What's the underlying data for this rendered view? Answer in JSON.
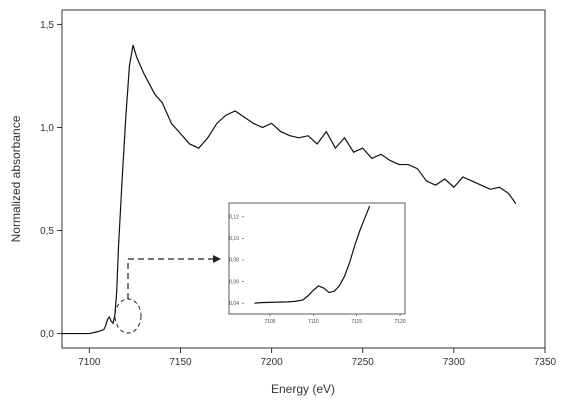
{
  "chart_data": [
    {
      "type": "line",
      "title": "",
      "xlabel": "Energy (eV)",
      "ylabel": "Normalized absorbance",
      "xlim": [
        7085,
        7350
      ],
      "ylim": [
        -0.07,
        1.57
      ],
      "x_ticks": [
        7100,
        7150,
        7200,
        7250,
        7300,
        7350
      ],
      "x_tick_labels": [
        "7100",
        "7150",
        "7200",
        "7250",
        "7300",
        "7350"
      ],
      "y_ticks": [
        0.0,
        0.5,
        1.0,
        1.5
      ],
      "y_tick_labels": [
        "0,0",
        "0,5",
        "1,0",
        "1,5"
      ],
      "grid": false,
      "legend": "none",
      "color": "#111111",
      "series": [
        {
          "x": [
            7085,
            7100,
            7105,
            7108,
            7109,
            7110,
            7111,
            7112,
            7113,
            7114,
            7115,
            7116,
            7118,
            7120,
            7122,
            7124,
            7126,
            7128,
            7130,
            7133,
            7136,
            7140,
            7145,
            7150,
            7155,
            7160,
            7165,
            7170,
            7175,
            7180,
            7185,
            7190,
            7195,
            7200,
            7205,
            7210,
            7215,
            7220,
            7225,
            7230,
            7235,
            7240,
            7245,
            7250,
            7255,
            7260,
            7265,
            7270,
            7275,
            7280,
            7285,
            7290,
            7295,
            7300,
            7305,
            7310,
            7315,
            7320,
            7325,
            7330,
            7334
          ],
          "y": [
            0.0,
            0.0,
            0.01,
            0.02,
            0.04,
            0.07,
            0.08,
            0.06,
            0.05,
            0.09,
            0.2,
            0.42,
            0.75,
            1.05,
            1.3,
            1.4,
            1.34,
            1.3,
            1.26,
            1.21,
            1.16,
            1.12,
            1.02,
            0.97,
            0.92,
            0.9,
            0.95,
            1.02,
            1.06,
            1.08,
            1.05,
            1.02,
            1.0,
            1.02,
            0.98,
            0.96,
            0.95,
            0.96,
            0.92,
            0.98,
            0.9,
            0.95,
            0.88,
            0.9,
            0.85,
            0.87,
            0.84,
            0.82,
            0.82,
            0.8,
            0.74,
            0.72,
            0.75,
            0.71,
            0.76,
            0.74,
            0.72,
            0.7,
            0.71,
            0.68,
            0.63
          ]
        }
      ]
    },
    {
      "type": "line",
      "title": "",
      "xlabel": "",
      "ylabel": "",
      "xlim": [
        7102,
        7120
      ],
      "ylim": [
        0.03,
        0.13
      ],
      "x_ticks": [
        7105,
        7110,
        7115,
        7120
      ],
      "x_tick_labels": [
        "7105",
        "7110",
        "7115",
        "7120"
      ],
      "y_ticks": [
        0.04,
        0.06,
        0.08,
        0.1,
        0.12
      ],
      "y_tick_labels": [
        "0,04",
        "0,06",
        "0,08",
        "0,10",
        "0,12"
      ],
      "grid": false,
      "legend": "none",
      "color": "#111111",
      "series": [
        {
          "x": [
            7103.2,
            7104,
            7105,
            7106,
            7107,
            7108,
            7108.8,
            7109.4,
            7110,
            7110.6,
            7111.2,
            7111.8,
            7112.4,
            7113,
            7113.6,
            7114.2,
            7114.8,
            7115.4,
            7116,
            7116.5
          ],
          "y": [
            0.04,
            0.0405,
            0.0408,
            0.041,
            0.0412,
            0.0418,
            0.043,
            0.047,
            0.052,
            0.056,
            0.054,
            0.05,
            0.051,
            0.056,
            0.065,
            0.078,
            0.094,
            0.108,
            0.12,
            0.13
          ]
        }
      ]
    }
  ]
}
